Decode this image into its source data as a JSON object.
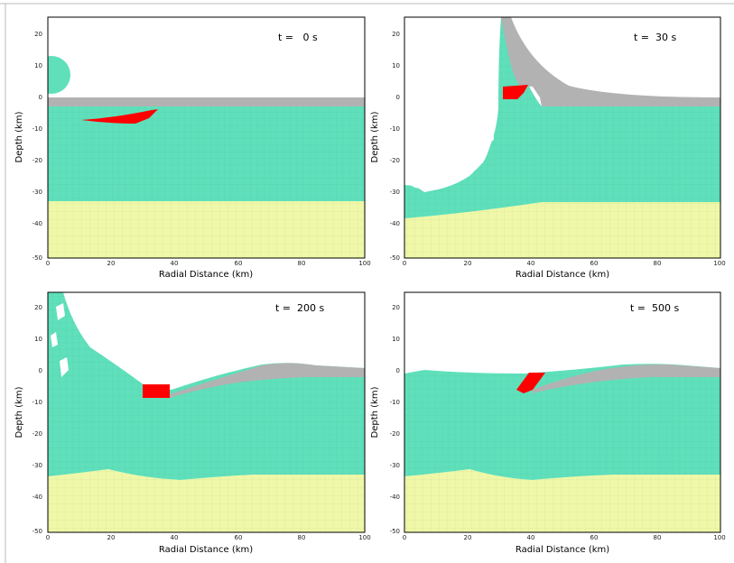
{
  "figure": {
    "xlabel": "Radial Distance (km)",
    "ylabel": "Depth (km)",
    "x_ticks": [
      0,
      20,
      40,
      60,
      80,
      100
    ],
    "y_ticks": [
      20,
      10,
      0,
      -10,
      -20,
      -30,
      -40,
      -50
    ],
    "x_range": [
      0,
      100
    ],
    "y_range": [
      -50,
      25
    ],
    "colors": {
      "crust": "#5fe0bb",
      "mantle": "#eef8a8",
      "sediment": "#b2b2b2",
      "impactor": "#ff0000",
      "grid": "#3aa58a"
    },
    "panels": [
      {
        "label": "t =   0 s"
      },
      {
        "label": "t =  30 s"
      },
      {
        "label": "t =  200 s"
      },
      {
        "label": "t =  500 s"
      }
    ]
  }
}
